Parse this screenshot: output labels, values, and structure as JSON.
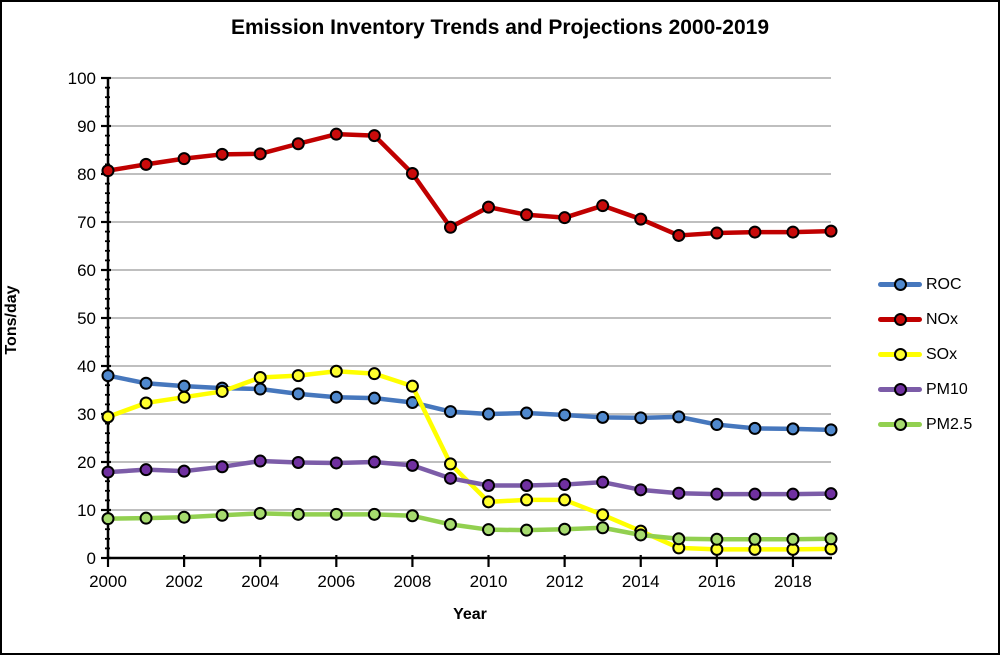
{
  "chart_data": {
    "type": "line",
    "title": "Emission Inventory Trends and Projections 2000-2019",
    "xlabel": "Year",
    "ylabel": "Tons/day",
    "x": [
      2000,
      2001,
      2002,
      2003,
      2004,
      2005,
      2006,
      2007,
      2008,
      2009,
      2010,
      2011,
      2012,
      2013,
      2014,
      2015,
      2016,
      2017,
      2018,
      2019
    ],
    "ylim": [
      0,
      100
    ],
    "y_major_step": 10,
    "y_minor_step": 2,
    "x_tick_step": 2,
    "grid": "horizontal-major",
    "legend_position": "right",
    "colors": {
      "gridline": "#BFBFBF",
      "axis": "#000000",
      "text": "#000000"
    },
    "series": [
      {
        "name": "ROC",
        "line_color": "#4677BD",
        "marker_color": "#5089CE",
        "values": [
          38.0,
          36.4,
          35.8,
          35.4,
          35.2,
          34.2,
          33.5,
          33.3,
          32.4,
          30.5,
          30.0,
          30.2,
          29.8,
          29.3,
          29.2,
          29.4,
          27.8,
          27.0,
          26.9,
          26.7
        ]
      },
      {
        "name": "NOx",
        "line_color": "#C00000",
        "marker_color": "#C90B0B",
        "values": [
          80.7,
          82.0,
          83.2,
          84.1,
          84.2,
          86.3,
          88.3,
          88.0,
          80.1,
          68.9,
          73.1,
          71.5,
          70.9,
          73.4,
          70.6,
          67.2,
          67.7,
          67.9,
          67.9,
          68.1
        ]
      },
      {
        "name": "SOx",
        "line_color": "#FFFF00",
        "marker_color": "#FFFF2E",
        "values": [
          29.4,
          32.3,
          33.5,
          34.7,
          37.6,
          38.0,
          38.9,
          38.4,
          35.8,
          19.6,
          11.7,
          12.1,
          12.1,
          9.0,
          5.6,
          2.1,
          1.8,
          1.8,
          1.8,
          1.9
        ]
      },
      {
        "name": "PM10",
        "line_color": "#7C5CA8",
        "marker_color": "#7030A0",
        "values": [
          17.9,
          18.4,
          18.1,
          19.0,
          20.2,
          19.9,
          19.8,
          20.0,
          19.3,
          16.6,
          15.1,
          15.1,
          15.3,
          15.8,
          14.2,
          13.5,
          13.3,
          13.3,
          13.3,
          13.4
        ]
      },
      {
        "name": "PM2.5",
        "line_color": "#92D050",
        "marker_color": "#A6DB6E",
        "values": [
          8.2,
          8.3,
          8.5,
          8.9,
          9.3,
          9.1,
          9.1,
          9.1,
          8.8,
          7.0,
          5.9,
          5.8,
          6.0,
          6.3,
          4.8,
          4.0,
          3.9,
          3.9,
          3.9,
          4.0
        ]
      }
    ]
  }
}
